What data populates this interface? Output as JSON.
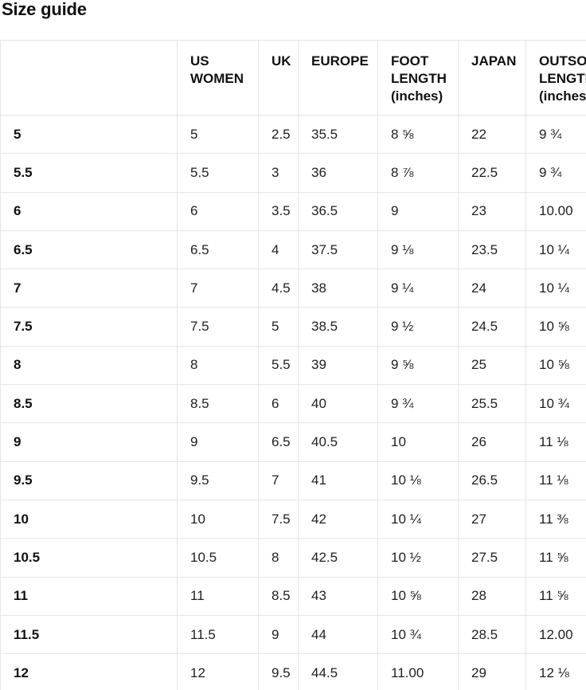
{
  "page": {
    "title": "Size guide"
  },
  "colors": {
    "background": "#ffffff",
    "border": "#e6e6e6",
    "header_text": "#111111",
    "cell_text": "#1f1f1f"
  },
  "table": {
    "headers": [
      {
        "key": "size",
        "label": ""
      },
      {
        "key": "us_women",
        "label": "US WOMEN"
      },
      {
        "key": "uk",
        "label": "UK"
      },
      {
        "key": "europe",
        "label": "EUROPE"
      },
      {
        "key": "foot_length_inches",
        "label": "FOOT LENGTH (inches)"
      },
      {
        "key": "japan",
        "label": "JAPAN"
      },
      {
        "key": "outsole_length_inches",
        "label": "OUTSOLE LENGTH (inches)"
      }
    ],
    "rows": [
      [
        "5",
        "5",
        "2.5",
        "35.5",
        "8 ⅝",
        "22",
        "9 ¾"
      ],
      [
        "5.5",
        "5.5",
        "3",
        "36",
        "8 ⅞",
        "22.5",
        "9 ¾"
      ],
      [
        "6",
        "6",
        "3.5",
        "36.5",
        "9",
        "23",
        "10.00"
      ],
      [
        "6.5",
        "6.5",
        "4",
        "37.5",
        "9 ⅛",
        "23.5",
        "10 ¼"
      ],
      [
        "7",
        "7",
        "4.5",
        "38",
        "9 ¼",
        "24",
        "10 ¼"
      ],
      [
        "7.5",
        "7.5",
        "5",
        "38.5",
        "9 ½",
        "24.5",
        "10 ⅝"
      ],
      [
        "8",
        "8",
        "5.5",
        "39",
        "9 ⅝",
        "25",
        "10 ⅝"
      ],
      [
        "8.5",
        "8.5",
        "6",
        "40",
        "9 ¾",
        "25.5",
        "10 ¾"
      ],
      [
        "9",
        "9",
        "6.5",
        "40.5",
        "10",
        "26",
        "11 ⅛"
      ],
      [
        "9.5",
        "9.5",
        "7",
        "41",
        "10 ⅛",
        "26.5",
        "11 ⅛"
      ],
      [
        "10",
        "10",
        "7.5",
        "42",
        "10 ¼",
        "27",
        "11 ⅜"
      ],
      [
        "10.5",
        "10.5",
        "8",
        "42.5",
        "10 ½",
        "27.5",
        "11 ⅝"
      ],
      [
        "11",
        "11",
        "8.5",
        "43",
        "10 ⅝",
        "28",
        "11 ⅝"
      ],
      [
        "11.5",
        "11.5",
        "9",
        "44",
        "10 ¾",
        "28.5",
        "12.00"
      ],
      [
        "12",
        "12",
        "9.5",
        "44.5",
        "11.00",
        "29",
        "12 ⅛"
      ]
    ]
  }
}
